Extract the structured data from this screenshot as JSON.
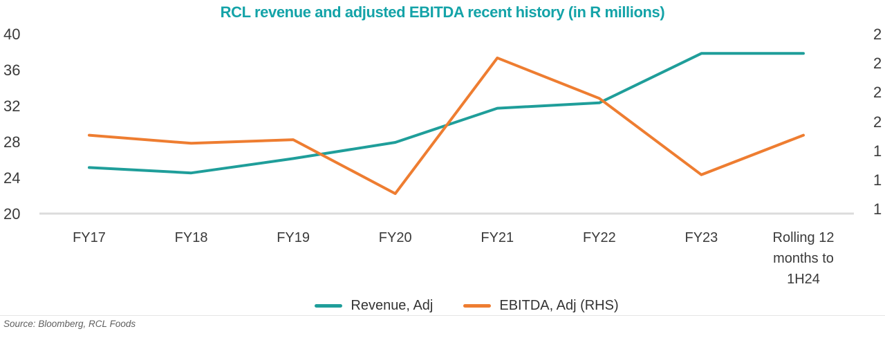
{
  "title": "RCL revenue and adjusted EBITDA recent history (in R millions)",
  "source_note": "Source: Bloomberg, RCL Foods",
  "colors": {
    "title": "#14a3a8",
    "revenue_line": "#1f9e9a",
    "ebitda_line": "#ee7d31",
    "axis_text": "#3a3a3a",
    "baseline": "#dcdcdc",
    "source_text": "#5f5f5f"
  },
  "chart_data": {
    "type": "line",
    "title": "RCL revenue and adjusted EBITDA recent history (in R millions)",
    "categories": [
      "FY17",
      "FY18",
      "FY19",
      "FY20",
      "FY21",
      "FY22",
      "FY23",
      "Rolling 12\nmonths to\n1H24"
    ],
    "series": [
      {
        "name": "Revenue, Adj",
        "axis": "left",
        "color": "#1f9e9a",
        "values": [
          25.2,
          24.6,
          26.2,
          28.0,
          31.8,
          32.4,
          37.9,
          37.9
        ]
      },
      {
        "name": "EBITDA, Adj (RHS)",
        "axis": "right",
        "color": "#ee7d31",
        "values": [
          28.8,
          27.9,
          28.3,
          22.3,
          37.4,
          32.9,
          24.4,
          28.8
        ],
        "values_note": "read on left-axis scale; right-axis labels truncated at image edge"
      }
    ],
    "left_axis": {
      "ticks": [
        40,
        36,
        32,
        28,
        24,
        20
      ],
      "range": [
        20,
        40
      ]
    },
    "right_axis": {
      "visible_tick_labels": [
        "2",
        "2",
        "2",
        "2",
        "1",
        "1",
        "1"
      ]
    },
    "legend_position": "bottom-center",
    "grid": false
  }
}
